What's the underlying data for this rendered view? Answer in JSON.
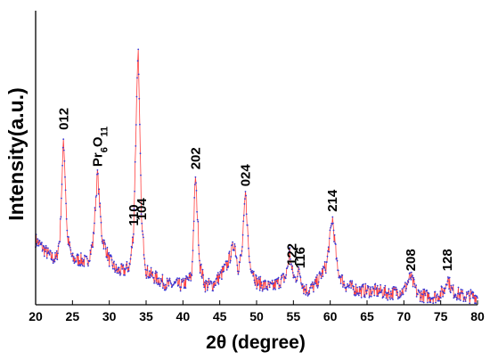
{
  "chart_data": {
    "type": "line",
    "xlabel": "2θ (degree)",
    "ylabel": "Intensity(a.u.)",
    "xlim": [
      20,
      80
    ],
    "ylim": [
      0,
      1
    ],
    "x_ticks": [
      "20",
      "25",
      "30",
      "35",
      "40",
      "45",
      "50",
      "55",
      "60",
      "65",
      "70",
      "75",
      "80"
    ],
    "y_ticks_labeled": false,
    "grid": false,
    "series": [
      {
        "x": [
          20,
          21,
          22,
          22.8,
          23.3,
          23.8,
          24.3,
          25,
          26,
          27,
          27.8,
          28.4,
          29,
          30,
          31,
          32,
          32.8,
          33.3,
          33.9,
          34.4,
          35,
          36,
          38,
          40,
          41.2,
          41.7,
          42.3,
          43,
          44,
          45,
          46,
          47,
          47.5,
          48,
          48.5,
          49,
          50,
          52,
          54,
          54.5,
          54.8,
          55.2,
          55.8,
          56.4,
          57,
          58,
          59.5,
          60.3,
          61,
          62,
          64,
          66,
          68,
          70,
          70.9,
          71.8,
          73,
          74.5,
          75.5,
          75.9,
          76.5,
          78,
          80
        ],
        "y": [
          0.23,
          0.2,
          0.17,
          0.16,
          0.24,
          0.6,
          0.24,
          0.16,
          0.16,
          0.15,
          0.22,
          0.47,
          0.24,
          0.16,
          0.12,
          0.12,
          0.14,
          0.26,
          0.93,
          0.28,
          0.12,
          0.1,
          0.07,
          0.07,
          0.1,
          0.46,
          0.14,
          0.07,
          0.07,
          0.1,
          0.14,
          0.22,
          0.13,
          0.18,
          0.4,
          0.16,
          0.08,
          0.06,
          0.1,
          0.19,
          0.12,
          0.09,
          0.12,
          0.06,
          0.05,
          0.07,
          0.14,
          0.31,
          0.12,
          0.07,
          0.05,
          0.05,
          0.04,
          0.05,
          0.1,
          0.04,
          0.03,
          0.03,
          0.05,
          0.1,
          0.05,
          0.03,
          0.03
        ]
      }
    ],
    "peak_labels": [
      {
        "text": "012",
        "x": 23.8
      },
      {
        "text": "Pr6O11",
        "x": 28.4
      },
      {
        "text": "110",
        "x": 33.3
      },
      {
        "text": "104",
        "x": 34.4
      },
      {
        "text": "202",
        "x": 41.7
      },
      {
        "text": "024",
        "x": 48.5
      },
      {
        "text": "122",
        "x": 54.8
      },
      {
        "text": "116",
        "x": 55.9
      },
      {
        "text": "214",
        "x": 60.3
      },
      {
        "text": "208",
        "x": 70.9
      },
      {
        "text": "128",
        "x": 75.9
      }
    ],
    "colors": {
      "line": "#ff4040",
      "points": "#3a3ad6",
      "axis": "#000000"
    }
  }
}
